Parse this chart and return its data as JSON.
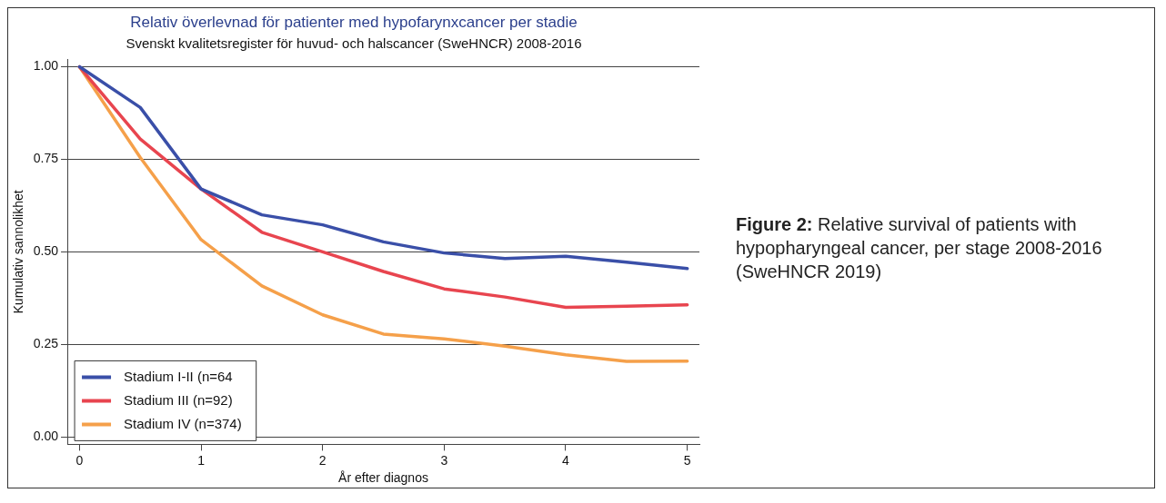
{
  "chart_data": {
    "type": "line",
    "title": "Relativ överlevnad för patienter med hypofarynxcancer per stadie",
    "subtitle": "Svenskt kvalitetsregister för huvud- och halscancer (SweHNCR) 2008-2016",
    "xlabel": "År efter diagnos",
    "ylabel": "Kumulativ sannolikhet",
    "x": [
      0,
      0.5,
      1,
      1.5,
      2,
      2.5,
      3,
      3.5,
      4,
      4.5,
      5
    ],
    "series": [
      {
        "name": "Stadium I-II (n=64",
        "color": "#3a4fa8",
        "values": [
          1.0,
          0.89,
          0.67,
          0.6,
          0.573,
          0.527,
          0.497,
          0.482,
          0.488,
          0.472,
          0.455
        ]
      },
      {
        "name": "Stadium III (n=92)",
        "color": "#e8454f",
        "values": [
          1.0,
          0.805,
          0.67,
          0.553,
          0.5,
          0.447,
          0.4,
          0.378,
          0.35,
          0.353,
          0.357
        ]
      },
      {
        "name": "Stadium IV (n=374)",
        "color": "#f5a04a",
        "values": [
          1.0,
          0.755,
          0.533,
          0.408,
          0.33,
          0.278,
          0.265,
          0.245,
          0.222,
          0.204,
          0.205
        ]
      }
    ],
    "xlim": [
      -0.1,
      5.1
    ],
    "xticks": [
      0,
      1,
      2,
      3,
      4,
      5
    ],
    "ylim": [
      -0.02,
      1.02
    ],
    "yticks": [
      {
        "value": 0,
        "label": "0.00"
      },
      {
        "value": 0.25,
        "label": "0.25"
      },
      {
        "value": 0.5,
        "label": "0.50"
      },
      {
        "value": 0.75,
        "label": "0.75"
      },
      {
        "value": 1,
        "label": "1.00"
      }
    ],
    "grid": "y",
    "legend": "bottom left",
    "marker": "none",
    "line_style": "solid",
    "annotations": [
      "Figure 2:",
      "Relative survival of patients with hypopharyngeal cancer, per stage 2008-2016 (SweHNCR 2019)"
    ]
  }
}
